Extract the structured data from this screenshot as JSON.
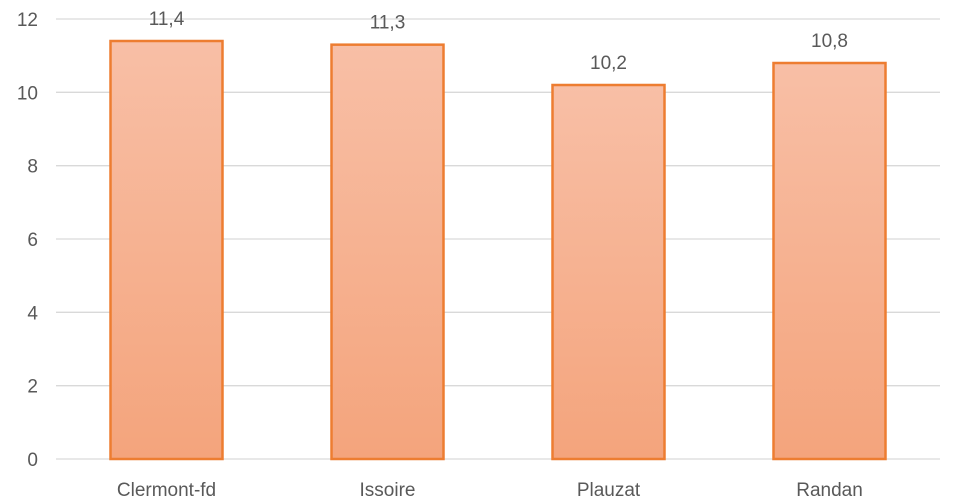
{
  "chart_data": {
    "type": "bar",
    "categories": [
      "Clermont-fd",
      "Issoire",
      "Plauzat",
      "Randan"
    ],
    "values": [
      11.4,
      11.3,
      10.2,
      10.8
    ],
    "value_labels": [
      "11,4",
      "11,3",
      "10,2",
      "10,8"
    ],
    "title": "",
    "xlabel": "",
    "ylabel": "",
    "ylim": [
      0,
      12
    ],
    "yticks": [
      "0",
      "2",
      "4",
      "6",
      "8",
      "10",
      "12"
    ],
    "grid": true,
    "legend": "none",
    "colors": {
      "bar_fill_top": "#f8bfa6",
      "bar_fill_bottom": "#f4a47c",
      "bar_outline": "#ed7d31",
      "gridline": "#d9d9d9",
      "text": "#595959"
    }
  }
}
